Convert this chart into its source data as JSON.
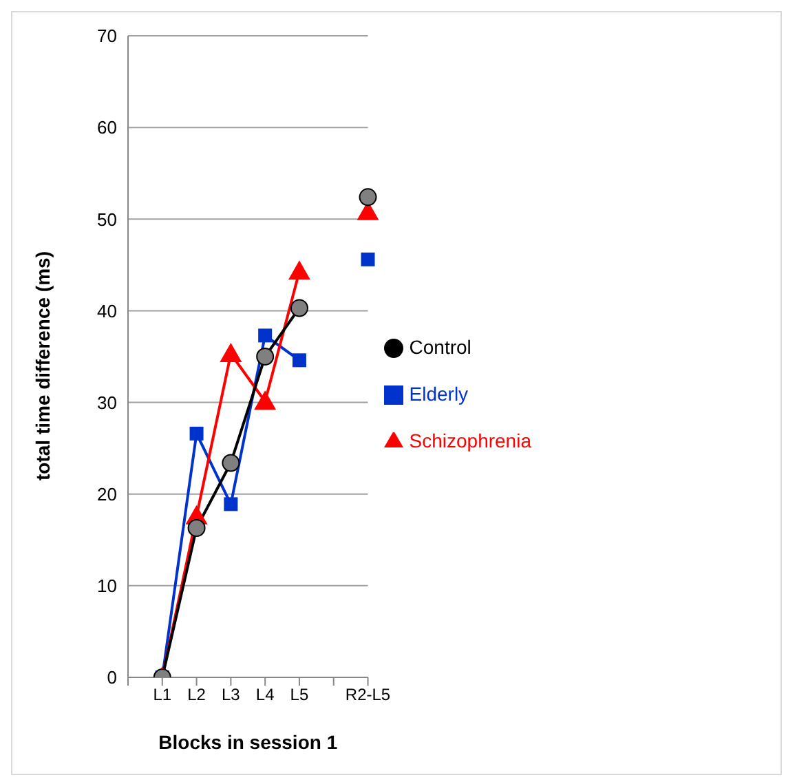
{
  "chart_data": {
    "type": "line",
    "xlabel": "Blocks in session 1",
    "ylabel": "total time difference (ms)",
    "categories": [
      null,
      "L1",
      "L2",
      "L3",
      "L4",
      "L5",
      null,
      "R2-L5"
    ],
    "series": [
      {
        "name": "Elderly",
        "color": "#0033cc",
        "marker": "square",
        "values": [
          null,
          0,
          26.6,
          18.9,
          37.3,
          34.6,
          null,
          45.6
        ]
      },
      {
        "name": "Schizophrenia",
        "color": "#ff0000",
        "marker": "triangle",
        "values": [
          null,
          0,
          17.6,
          35.3,
          30.1,
          44.3,
          null,
          50.8
        ]
      },
      {
        "name": "Control",
        "color": "#000000",
        "marker": "circle",
        "values": [
          null,
          0,
          16.3,
          23.4,
          35.0,
          40.3,
          null,
          52.4
        ]
      }
    ],
    "ylim": [
      0,
      70
    ],
    "yticks": [
      0,
      10,
      20,
      30,
      40,
      50,
      60,
      70
    ],
    "grid": "y",
    "legend": "right"
  }
}
